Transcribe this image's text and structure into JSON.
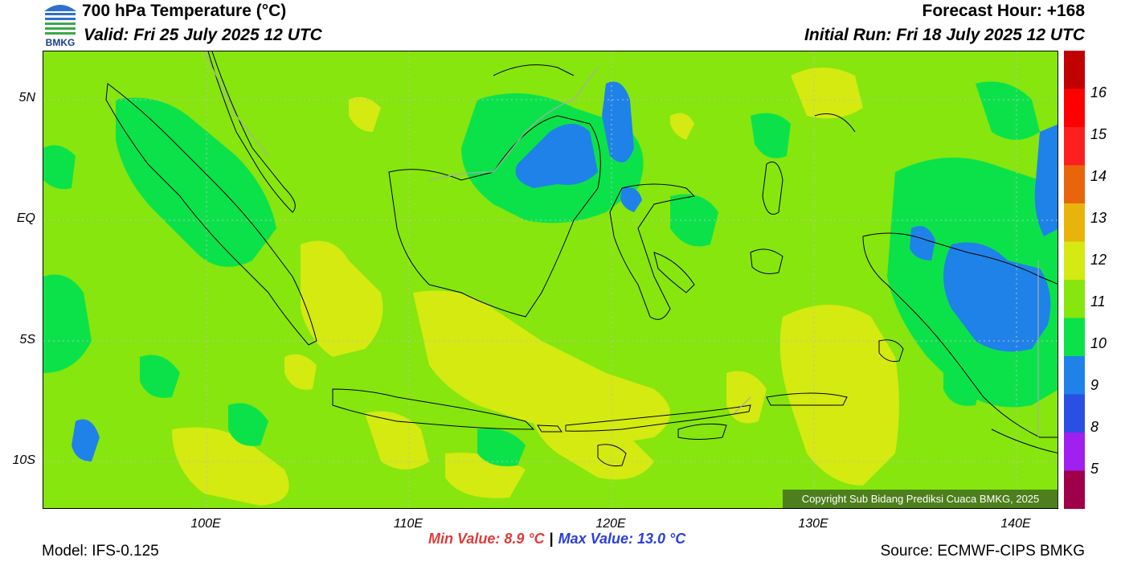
{
  "header": {
    "title": "700 hPa Temperature (°C)",
    "valid": "Valid: Fri 25 July 2025 12 UTC",
    "forecast_hour": "Forecast Hour: +168",
    "initial_run": "Initial Run: Fri 18 July 2025 12 UTC",
    "logo_text": "BMKG"
  },
  "map": {
    "lat_labels": [
      "5N",
      "EQ",
      "5S",
      "10S"
    ],
    "lon_labels": [
      "100E",
      "110E",
      "120E",
      "130E",
      "140E"
    ],
    "copyright": "Copyright Sub Bidang Prediksi Cuaca BMKG, 2025",
    "colors": {
      "c9": "#1f82e8",
      "c10": "#0be24a",
      "c11": "#86e60e",
      "c12": "#d4ea10",
      "coast": "#000000",
      "border": "#aaaaaa"
    }
  },
  "colorbar": {
    "labels": [
      "16",
      "15",
      "14",
      "13",
      "12",
      "11",
      "10",
      "9",
      "8",
      "5"
    ],
    "colors": [
      "#c10000",
      "#ff0000",
      "#ff1f1f",
      "#e8650c",
      "#e8b40c",
      "#d4ea10",
      "#86e60e",
      "#0be24a",
      "#1f82e8",
      "#2b4fe3",
      "#a020f0",
      "#a0004a"
    ]
  },
  "stats": {
    "min": "Min Value: 8.9 °C",
    "separator": "|",
    "max": "Max Value: 13.0 °C"
  },
  "footer": {
    "model": "Model: IFS-0.125",
    "source": "Source: ECMWF-CIPS BMKG"
  }
}
